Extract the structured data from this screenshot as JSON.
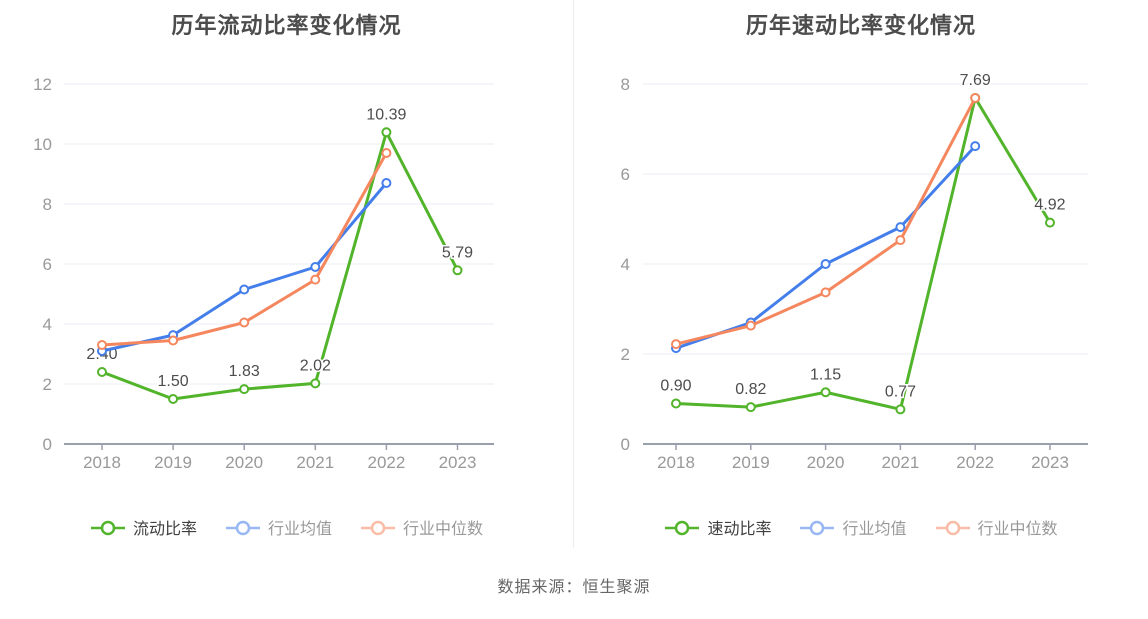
{
  "page": {
    "source_note": "数据来源：恒生聚源"
  },
  "colors": {
    "green": "#52b42a",
    "blue": "#447eea",
    "orange": "#f5875f",
    "grid": "#e8eef6",
    "axis": "#98a0ab",
    "tick_label": "#999999",
    "data_label": "#4d4d4d",
    "title": "#4c4c4c",
    "legend_primary": "#3f3f3f",
    "legend_secondary": "#999999",
    "source": "#666666"
  },
  "chart_data": [
    {
      "type": "line",
      "title": "历年流动比率变化情况",
      "x": [
        "2018",
        "2019",
        "2020",
        "2021",
        "2022",
        "2023"
      ],
      "ylim": [
        0,
        12
      ],
      "ytick_step": 2,
      "grid": "on",
      "legend_position": "bottom",
      "series": [
        {
          "name": "流动比率",
          "color": "green",
          "values": [
            2.4,
            1.5,
            1.83,
            2.02,
            10.39,
            5.79
          ],
          "point_labels": [
            "2.40",
            "1.50",
            "1.83",
            "2.02",
            "10.39",
            "5.79"
          ]
        },
        {
          "name": "行业均值",
          "color": "blue",
          "values": [
            3.1,
            3.63,
            5.15,
            5.9,
            8.7,
            null
          ]
        },
        {
          "name": "行业中位数",
          "color": "orange",
          "values": [
            3.3,
            3.45,
            4.05,
            5.48,
            9.7,
            null
          ]
        }
      ]
    },
    {
      "type": "line",
      "title": "历年速动比率变化情况",
      "x": [
        "2018",
        "2019",
        "2020",
        "2021",
        "2022",
        "2023"
      ],
      "ylim": [
        0,
        8
      ],
      "ytick_step": 2,
      "grid": "on",
      "legend_position": "bottom",
      "series": [
        {
          "name": "速动比率",
          "color": "green",
          "values": [
            0.9,
            0.82,
            1.15,
            0.77,
            7.69,
            4.92
          ],
          "point_labels": [
            "0.90",
            "0.82",
            "1.15",
            "0.77",
            "7.69",
            "4.92"
          ]
        },
        {
          "name": "行业均值",
          "color": "blue",
          "values": [
            2.13,
            2.7,
            4.0,
            4.82,
            6.62,
            null
          ]
        },
        {
          "name": "行业中位数",
          "color": "orange",
          "values": [
            2.22,
            2.63,
            3.37,
            4.53,
            7.69,
            null
          ]
        }
      ]
    }
  ]
}
